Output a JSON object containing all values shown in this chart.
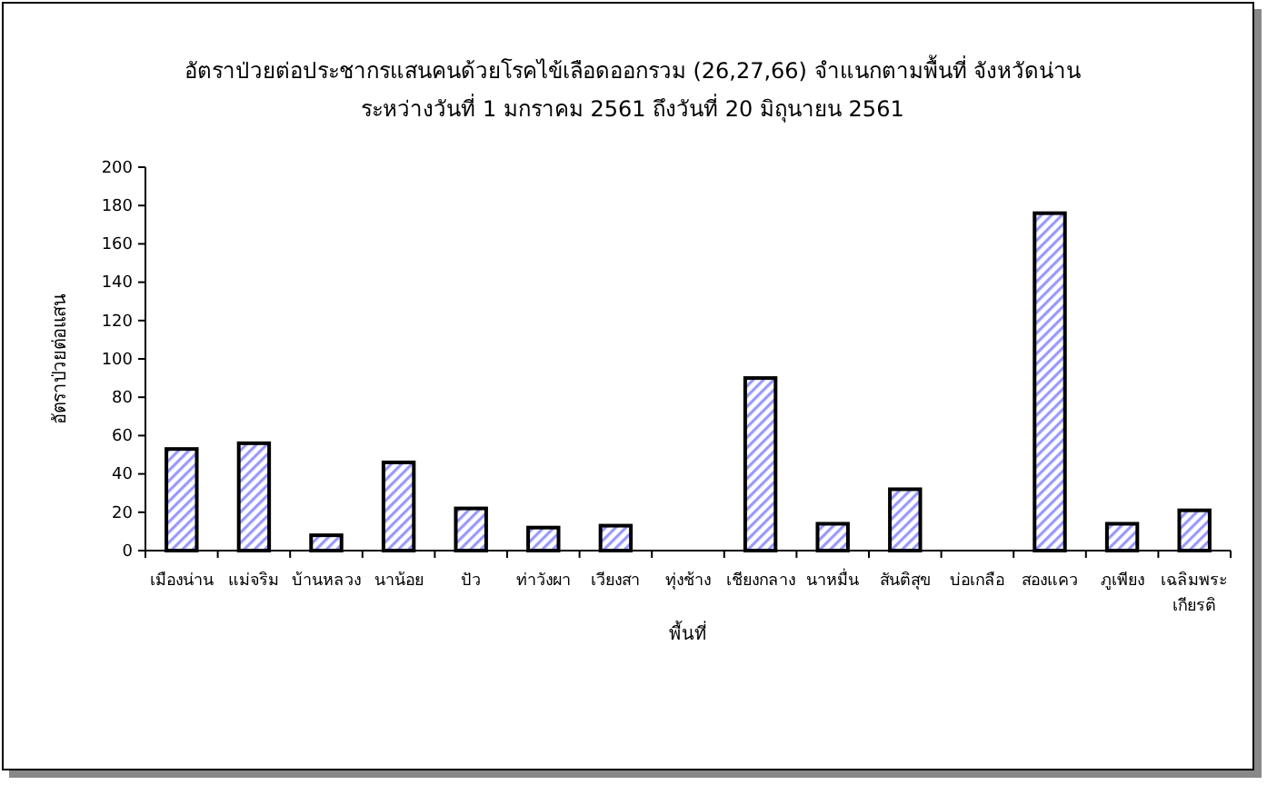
{
  "chart_data": {
    "type": "bar",
    "title": "อัตราป่วยต่อประชากรแสนคนด้วยโรคไข้เลือดออกรวม (26,27,66)  จำแนกตามพื้นที่  จังหวัดน่าน",
    "subtitle": "ระหว่างวันที่  1 มกราคม 2561  ถึงวันที่  20 มิถุนายน 2561",
    "xlabel": "พื้นที่",
    "ylabel": "อัตราป่วยต่อแสน",
    "categories": [
      "เมืองน่าน",
      "แม่จริม",
      "บ้านหลวง",
      "นาน้อย",
      "ปัว",
      "ท่าวังผา",
      "เวียงสา",
      "ทุ่งช้าง",
      "เชียงกลาง",
      "นาหมื่น",
      "สันติสุข",
      "บ่อเกลือ",
      "สองแคว",
      "ภูเพียง",
      "เฉลิมพระเกียรติ"
    ],
    "values": [
      53,
      56,
      8,
      46,
      22,
      12,
      13,
      0,
      90,
      14,
      32,
      0,
      176,
      14,
      21
    ],
    "color": "#000000",
    "ylim": [
      0,
      200
    ],
    "yticks": [
      0,
      20,
      40,
      60,
      80,
      100,
      120,
      140,
      160,
      180,
      200
    ],
    "grid": false
  }
}
